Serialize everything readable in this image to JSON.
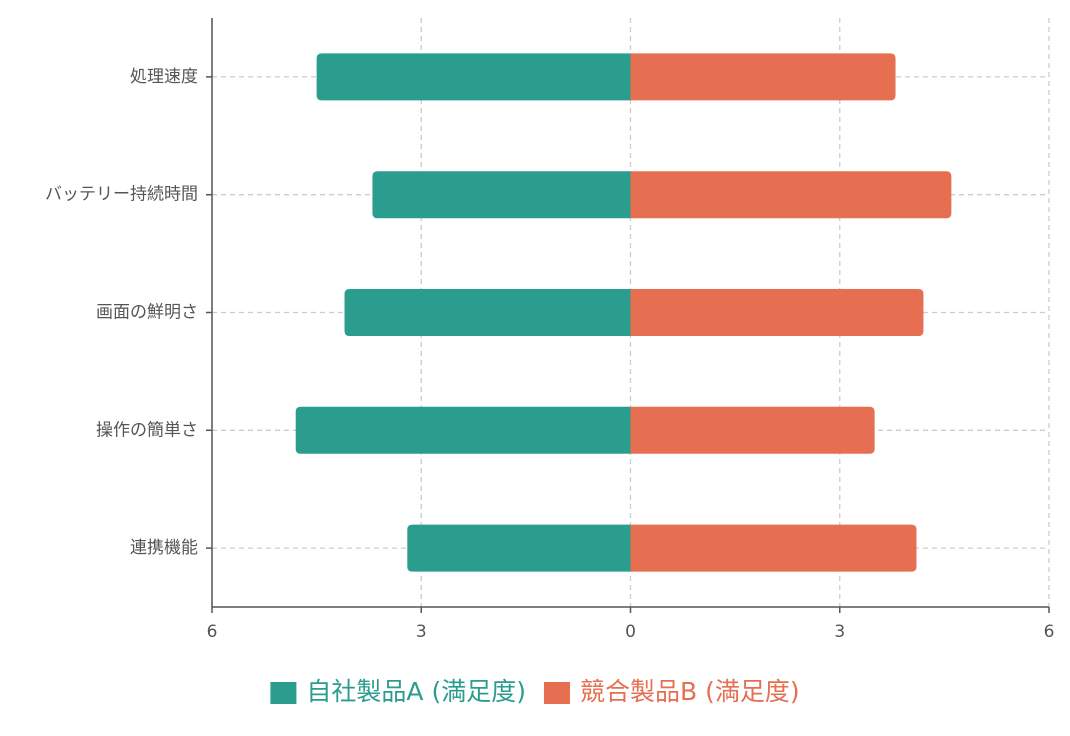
{
  "chart_data": {
    "type": "bar",
    "orientation": "horizontal",
    "layout": "diverging",
    "categories": [
      "処理速度",
      "バッテリー持続時間",
      "画面の鮮明さ",
      "操作の簡単さ",
      "連携機能"
    ],
    "series": [
      {
        "name": "自社製品A (満足度)",
        "values": [
          4.5,
          3.7,
          4.1,
          4.8,
          3.2
        ],
        "color": "#2a9d8f",
        "side": "left"
      },
      {
        "name": "競合製品B (満足度)",
        "values": [
          3.8,
          4.6,
          4.2,
          3.5,
          4.1
        ],
        "color": "#e76f51",
        "side": "right"
      }
    ],
    "xlim": [
      -6,
      6
    ],
    "x_ticks": [
      -6,
      -3,
      0,
      3,
      6
    ],
    "x_tick_labels": [
      "6",
      "3",
      "0",
      "3",
      "6"
    ],
    "grid": true,
    "legend_position": "bottom-center"
  }
}
